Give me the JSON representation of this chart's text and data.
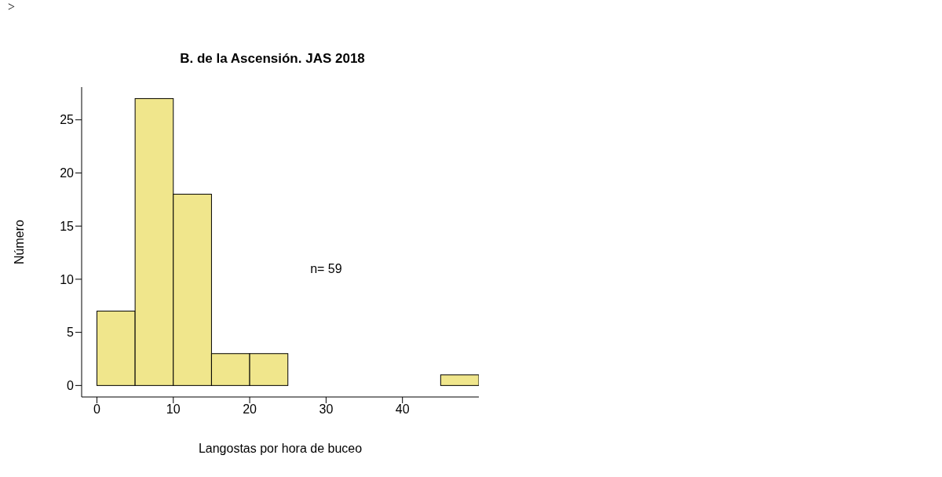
{
  "chart_data": {
    "type": "histogram",
    "title": "B. de la Ascensión. JAS 2018",
    "xlabel": "Langostas por hora de buceo",
    "ylabel": "Número",
    "bins": [
      0,
      5,
      10,
      15,
      20,
      25,
      30,
      35,
      40,
      45,
      50
    ],
    "values": [
      7,
      27,
      18,
      3,
      3,
      0,
      0,
      0,
      0,
      1
    ],
    "color": "#f0e68c",
    "xlim": [
      -2,
      50
    ],
    "xticks": [
      0,
      10,
      20,
      30,
      40
    ],
    "ylim": [
      -1.08,
      28.08
    ],
    "yticks": [
      0,
      5,
      10,
      15,
      20,
      25
    ],
    "annotations": [
      ">",
      "n= 59"
    ]
  }
}
